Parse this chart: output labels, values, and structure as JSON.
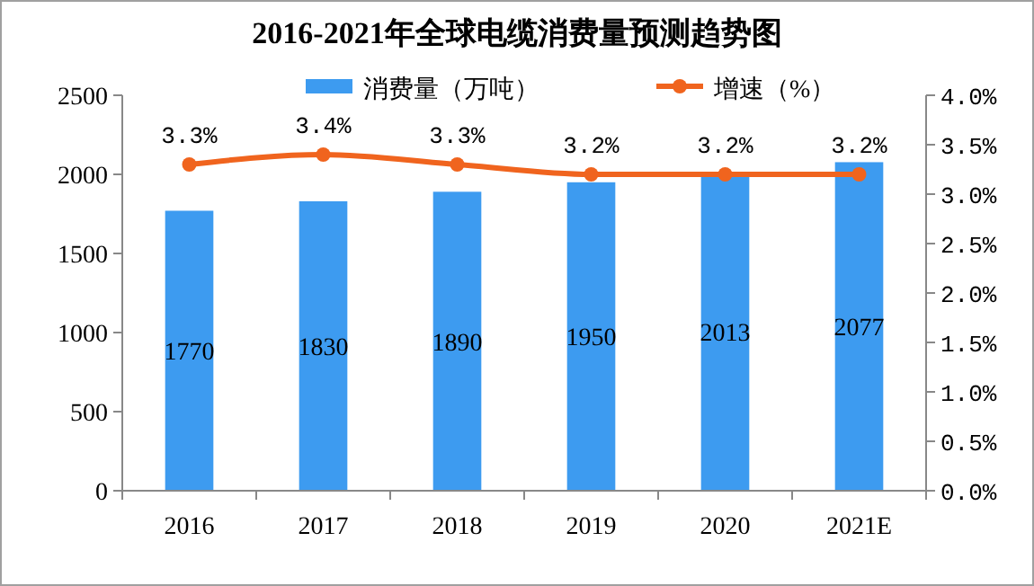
{
  "chart_data": {
    "type": "bar",
    "title": "2016-2021年全球电缆消费量预测趋势图",
    "categories": [
      "2016",
      "2017",
      "2018",
      "2019",
      "2020",
      "2021E"
    ],
    "series": [
      {
        "name": "消费量（万吨）",
        "color": "#3d9bf0",
        "values": [
          1770,
          1830,
          1890,
          1950,
          2013,
          2077
        ],
        "value_labels": [
          "1770",
          "1830",
          "1890",
          "1950",
          "2013",
          "2077"
        ]
      },
      {
        "name": "增速（%）",
        "type": "line",
        "axis": "y2",
        "color": "#f0641e",
        "marker": "circle",
        "values": [
          3.3,
          3.4,
          3.3,
          3.2,
          3.2,
          3.2
        ],
        "value_labels": [
          "3.3%",
          "3.4%",
          "3.3%",
          "3.2%",
          "3.2%",
          "3.2%"
        ]
      }
    ],
    "ylim": [
      0,
      2500
    ],
    "yticks": [
      0,
      500,
      1000,
      1500,
      2000,
      2500
    ],
    "y2lim": [
      0,
      4
    ],
    "y2ticks": [
      {
        "value": 0,
        "label": "0.0%"
      },
      {
        "value": 0.5,
        "label": "0.5%"
      },
      {
        "value": 1,
        "label": "1.0%"
      },
      {
        "value": 1.5,
        "label": "1.5%"
      },
      {
        "value": 2,
        "label": "2.0%"
      },
      {
        "value": 2.5,
        "label": "2.5%"
      },
      {
        "value": 3,
        "label": "3.0%"
      },
      {
        "value": 3.5,
        "label": "3.5%"
      },
      {
        "value": 4,
        "label": "4.0%"
      }
    ],
    "legend": "top",
    "grid": false
  }
}
